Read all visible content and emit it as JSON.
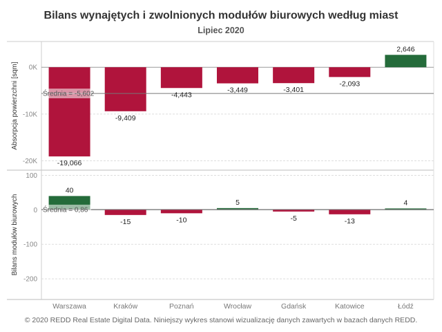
{
  "chart_data": {
    "type": "bar",
    "title": "Bilans wynajętych i zwolnionych modułów biurowych według miast",
    "subtitle": "Lipiec 2020",
    "footer": "© 2020 REDD Real Estate Digital Data. Niniejszy wykres stanowi wizualizację danych zawartych w bazach danych REDD.",
    "categories": [
      "Warszawa",
      "Kraków",
      "Poznań",
      "Wrocław",
      "Gdańsk",
      "Katowice",
      "Łódź"
    ],
    "colors": {
      "negative": "#b0143c",
      "positive": "#246b3a",
      "avg_line": "#777777",
      "grid": "#dddddd"
    },
    "panels": [
      {
        "ylabel": "Absorpcja powierzchni [sqm]",
        "ylim": [
          -22000,
          5500
        ],
        "yticks": [
          0,
          -10000,
          -20000
        ],
        "ytick_labels": [
          "0K",
          "-10K",
          "-20K"
        ],
        "values": [
          -19066,
          -9409,
          -4443,
          -3449,
          -3401,
          -2093,
          2646
        ],
        "value_labels": [
          "-19,066",
          "-9,409",
          "-4,443",
          "-3,449",
          "-3,401",
          "-2,093",
          "2,646"
        ],
        "average": -5602,
        "average_label": "Średnia = -5,602"
      },
      {
        "ylabel": "Bilans modułów biurowych",
        "ylim": [
          -260,
          115
        ],
        "yticks": [
          100,
          0,
          -100,
          -200
        ],
        "ytick_labels": [
          "100",
          "0",
          "-100",
          "-200"
        ],
        "values": [
          40,
          -15,
          -10,
          5,
          -5,
          -13,
          4
        ],
        "value_labels": [
          "40",
          "-15",
          "-10",
          "5",
          "-5",
          "-13",
          "4"
        ],
        "average": 0.86,
        "average_label": "Średnia = 0,86"
      }
    ]
  }
}
